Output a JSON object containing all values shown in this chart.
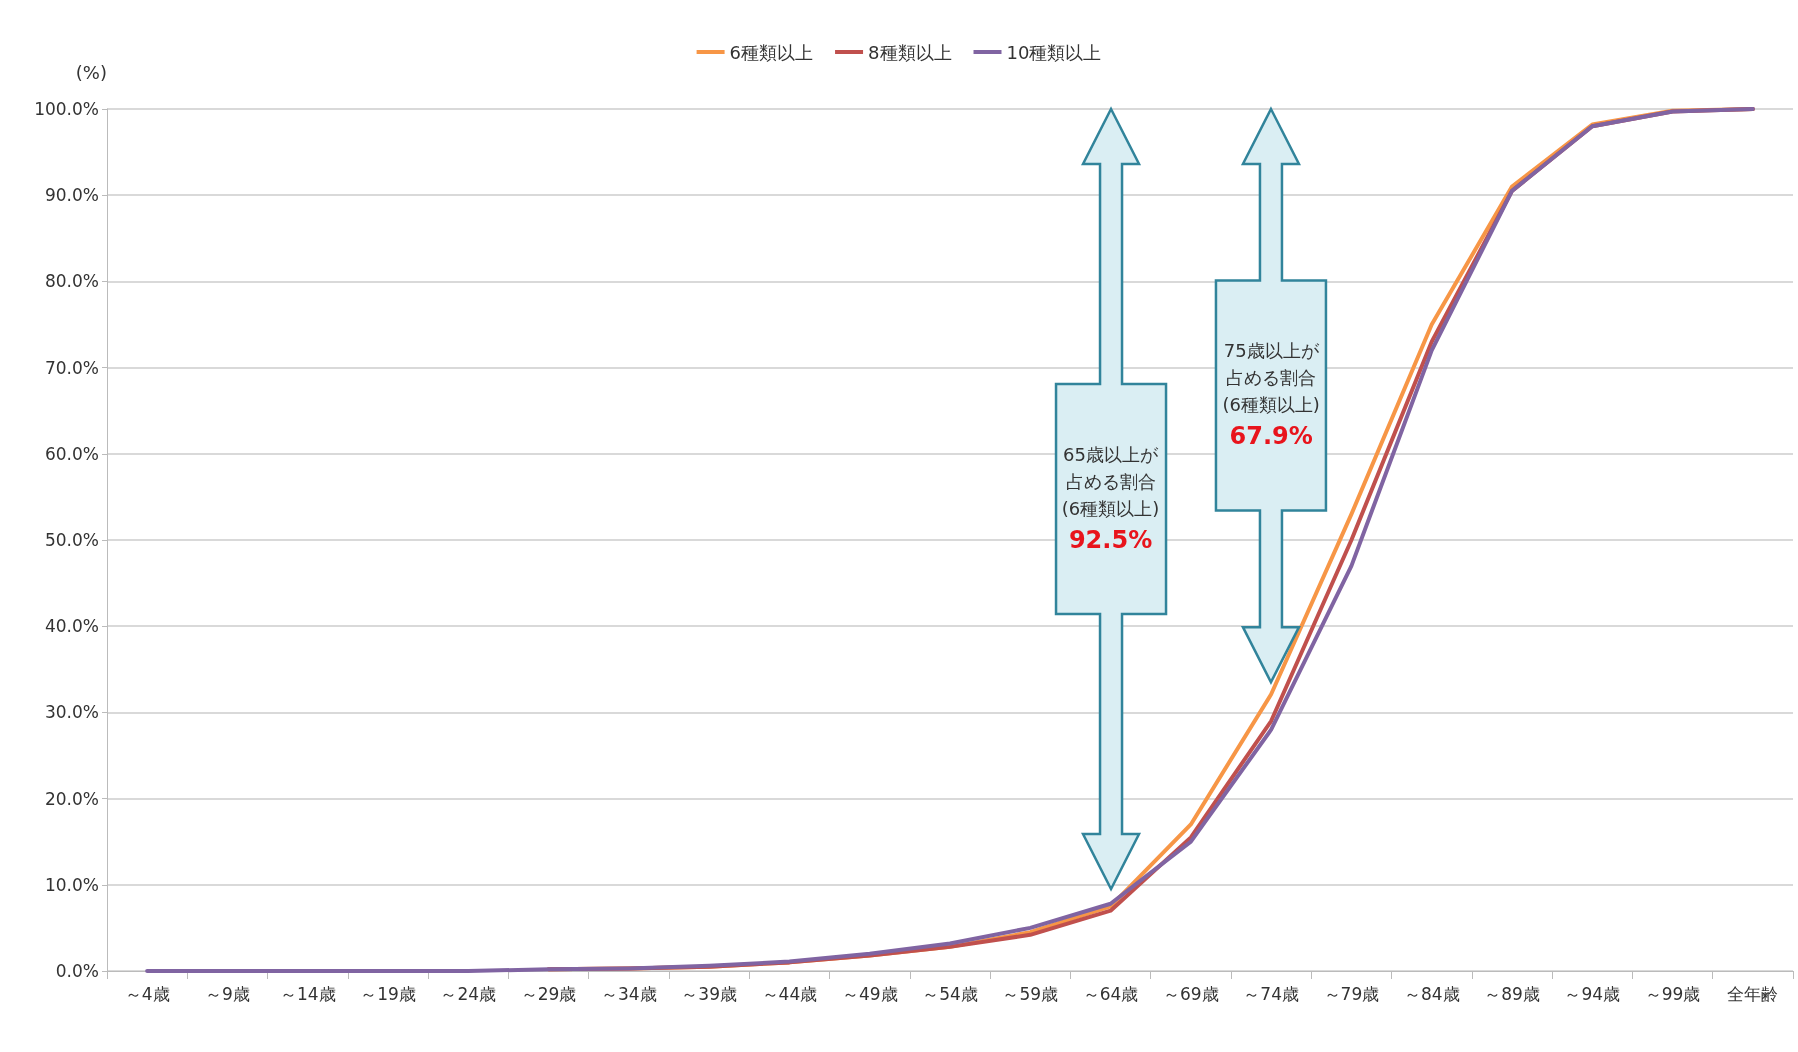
{
  "chart_data": {
    "type": "line",
    "ylabel": "(%)",
    "categories": [
      "～4歳",
      "～9歳",
      "～14歳",
      "～19歳",
      "～24歳",
      "～29歳",
      "～34歳",
      "～39歳",
      "～44歳",
      "～49歳",
      "～54歳",
      "～59歳",
      "～64歳",
      "～69歳",
      "～74歳",
      "～79歳",
      "～84歳",
      "～89歳",
      "～94歳",
      "～99歳",
      "全年齢"
    ],
    "series": [
      {
        "name": "6種類以上",
        "color": "#f79646",
        "values": [
          null,
          null,
          null,
          null,
          null,
          0.2,
          0.3,
          0.5,
          1.0,
          1.8,
          2.8,
          4.5,
          7.5,
          17,
          32.1,
          53,
          75,
          91,
          98.2,
          99.8,
          100
        ]
      },
      {
        "name": "8種類以上",
        "color": "#c0504d",
        "values": [
          null,
          null,
          null,
          null,
          null,
          0.2,
          0.3,
          0.5,
          1.0,
          1.8,
          2.8,
          4.2,
          7.0,
          15.5,
          29,
          50,
          73,
          90.5,
          98,
          99.7,
          100
        ]
      },
      {
        "name": "10種類以上",
        "color": "#8064a2",
        "values": [
          0,
          0,
          0,
          0,
          0,
          0.2,
          0.3,
          0.6,
          1.1,
          2.0,
          3.2,
          5.0,
          7.8,
          15.0,
          28,
          47,
          72,
          90.5,
          98,
          99.7,
          100
        ]
      }
    ],
    "ylim": [
      0,
      100
    ],
    "yticks": [
      {
        "value": 0,
        "label": "0.0%"
      },
      {
        "value": 10,
        "label": "10.0%"
      },
      {
        "value": 20,
        "label": "20.0%"
      },
      {
        "value": 30,
        "label": "30.0%"
      },
      {
        "value": 40,
        "label": "40.0%"
      },
      {
        "value": 50,
        "label": "50.0%"
      },
      {
        "value": 60,
        "label": "60.0%"
      },
      {
        "value": 70,
        "label": "70.0%"
      },
      {
        "value": 80,
        "label": "80.0%"
      },
      {
        "value": 90,
        "label": "90.0%"
      },
      {
        "value": 100,
        "label": "100.0%"
      }
    ],
    "grid": "y",
    "legend": "top",
    "marker": "none",
    "line_style": "solid",
    "annotations": [
      "65歳以上が",
      "占める割合",
      "(6種類以上)",
      "92.5%",
      "75歳以上が",
      "占める割合",
      "(6種類以上)",
      "67.9%"
    ]
  }
}
